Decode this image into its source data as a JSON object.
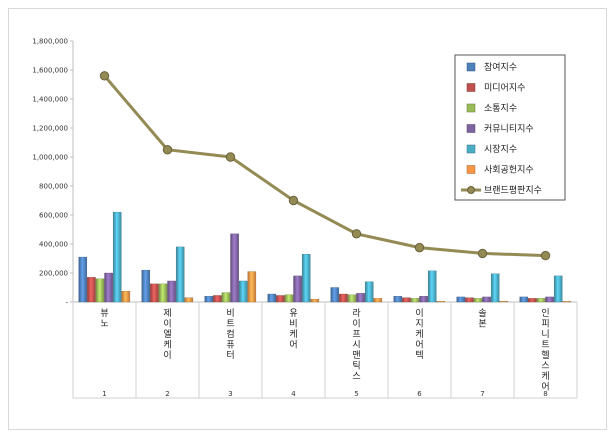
{
  "chart_data": {
    "type": "bar",
    "categories": [
      "뷰노",
      "제이엘케이",
      "비트컴퓨터",
      "유비케어",
      "라이프시맨틱스",
      "이지케어텍",
      "솔본",
      "인피니트헬스케어"
    ],
    "x_numbers": [
      "1",
      "2",
      "3",
      "4",
      "5",
      "6",
      "7",
      "8"
    ],
    "ylim": [
      0,
      1800000
    ],
    "ytick_labels": [
      "-",
      "200,000",
      "400,000",
      "600,000",
      "800,000",
      "1,000,000",
      "1,200,000",
      "1,400,000",
      "1,600,000",
      "1,800,000"
    ],
    "grid": false,
    "legend_position": "top-right",
    "series": [
      {
        "name": "참여지수",
        "type": "bar",
        "color": "#4f81bd",
        "values": [
          310000,
          220000,
          40000,
          55000,
          100000,
          40000,
          35000,
          35000
        ]
      },
      {
        "name": "미디어지수",
        "type": "bar",
        "color": "#c0504d",
        "values": [
          170000,
          125000,
          45000,
          45000,
          55000,
          30000,
          30000,
          25000
        ]
      },
      {
        "name": "소통지수",
        "type": "bar",
        "color": "#9bbb59",
        "values": [
          160000,
          125000,
          65000,
          50000,
          50000,
          25000,
          25000,
          25000
        ]
      },
      {
        "name": "커뮤니티지수",
        "type": "bar",
        "color": "#8064a2",
        "values": [
          200000,
          145000,
          470000,
          180000,
          60000,
          40000,
          35000,
          35000
        ]
      },
      {
        "name": "시장지수",
        "type": "bar",
        "color": "#4bacc6",
        "values": [
          620000,
          380000,
          145000,
          330000,
          140000,
          215000,
          195000,
          180000
        ]
      },
      {
        "name": "사회공헌지수",
        "type": "bar",
        "color": "#f79646",
        "values": [
          75000,
          30000,
          210000,
          20000,
          25000,
          5000,
          5000,
          5000
        ]
      },
      {
        "name": "브랜드평판지수",
        "type": "line",
        "color": "#948a54",
        "values": [
          1560000,
          1050000,
          1000000,
          700000,
          470000,
          375000,
          335000,
          320000
        ]
      }
    ]
  }
}
